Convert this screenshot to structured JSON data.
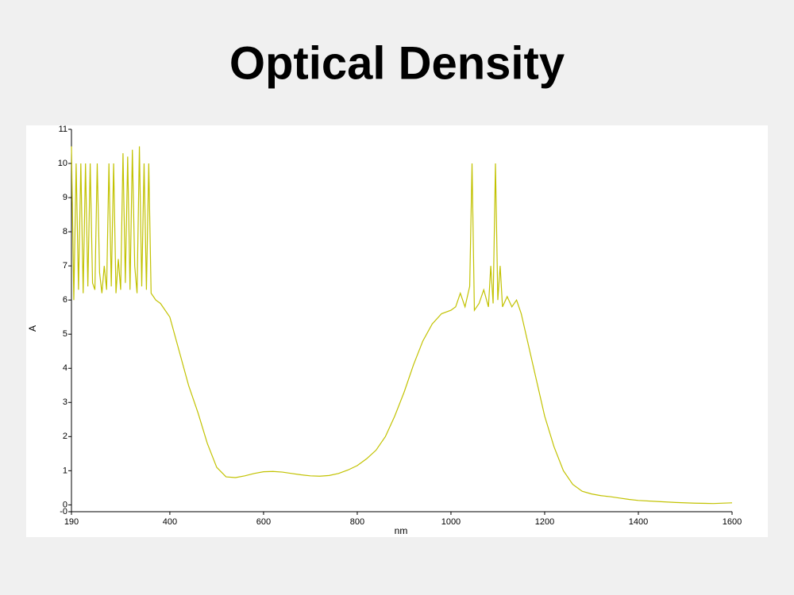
{
  "chart_data": {
    "type": "line",
    "title": "Optical Density",
    "x_label": "nm",
    "y_label": "A",
    "x": [
      190,
      195,
      200,
      205,
      210,
      215,
      220,
      225,
      230,
      235,
      240,
      245,
      250,
      255,
      260,
      265,
      270,
      275,
      280,
      285,
      290,
      295,
      300,
      305,
      310,
      315,
      320,
      325,
      330,
      335,
      340,
      345,
      350,
      355,
      360,
      365,
      370,
      380,
      400,
      420,
      440,
      460,
      480,
      500,
      520,
      540,
      560,
      580,
      600,
      620,
      640,
      660,
      680,
      700,
      720,
      740,
      760,
      780,
      800,
      820,
      840,
      860,
      880,
      900,
      920,
      940,
      960,
      980,
      1000,
      1010,
      1020,
      1030,
      1040,
      1045,
      1050,
      1060,
      1070,
      1080,
      1085,
      1090,
      1095,
      1100,
      1105,
      1110,
      1120,
      1130,
      1140,
      1150,
      1160,
      1180,
      1200,
      1220,
      1240,
      1260,
      1280,
      1300,
      1320,
      1340,
      1360,
      1380,
      1400,
      1440,
      1480,
      1520,
      1560,
      1600
    ],
    "series": [
      {
        "name": "A",
        "color": "#c2c200",
        "values": [
          10.5,
          6.0,
          10,
          6.3,
          10,
          6.2,
          10,
          6.4,
          10,
          6.5,
          6.3,
          10,
          6.8,
          6.2,
          7,
          6.3,
          10,
          6.4,
          10,
          6.2,
          7.2,
          6.3,
          10.3,
          6.5,
          10.2,
          6.3,
          10.4,
          7,
          6.2,
          10.5,
          6.4,
          10,
          6.3,
          10,
          6.2,
          6.1,
          6.0,
          5.9,
          5.5,
          4.5,
          3.5,
          2.7,
          1.8,
          1.1,
          0.82,
          0.8,
          0.85,
          0.92,
          0.97,
          0.98,
          0.96,
          0.92,
          0.88,
          0.85,
          0.84,
          0.86,
          0.92,
          1.02,
          1.15,
          1.35,
          1.6,
          2.0,
          2.6,
          3.3,
          4.1,
          4.8,
          5.3,
          5.6,
          5.7,
          5.8,
          6.2,
          5.8,
          6.4,
          10,
          5.7,
          5.9,
          6.3,
          5.8,
          7,
          5.9,
          10,
          6.0,
          7,
          5.8,
          6.1,
          5.8,
          6.0,
          5.6,
          5.0,
          3.8,
          2.6,
          1.7,
          1.0,
          0.6,
          0.4,
          0.32,
          0.27,
          0.24,
          0.2,
          0.16,
          0.13,
          0.1,
          0.07,
          0.05,
          0.04,
          0.06
        ]
      }
    ],
    "xlim": [
      190,
      1600
    ],
    "xticks": [
      190,
      400,
      600,
      800,
      1000,
      1200,
      1400,
      1600
    ],
    "ylim": [
      -0.2,
      11
    ],
    "yticks": [
      {
        "value": -0.2,
        "label": "-0"
      },
      0,
      1,
      2,
      3,
      4,
      5,
      6,
      7,
      8,
      9,
      10,
      11
    ]
  }
}
